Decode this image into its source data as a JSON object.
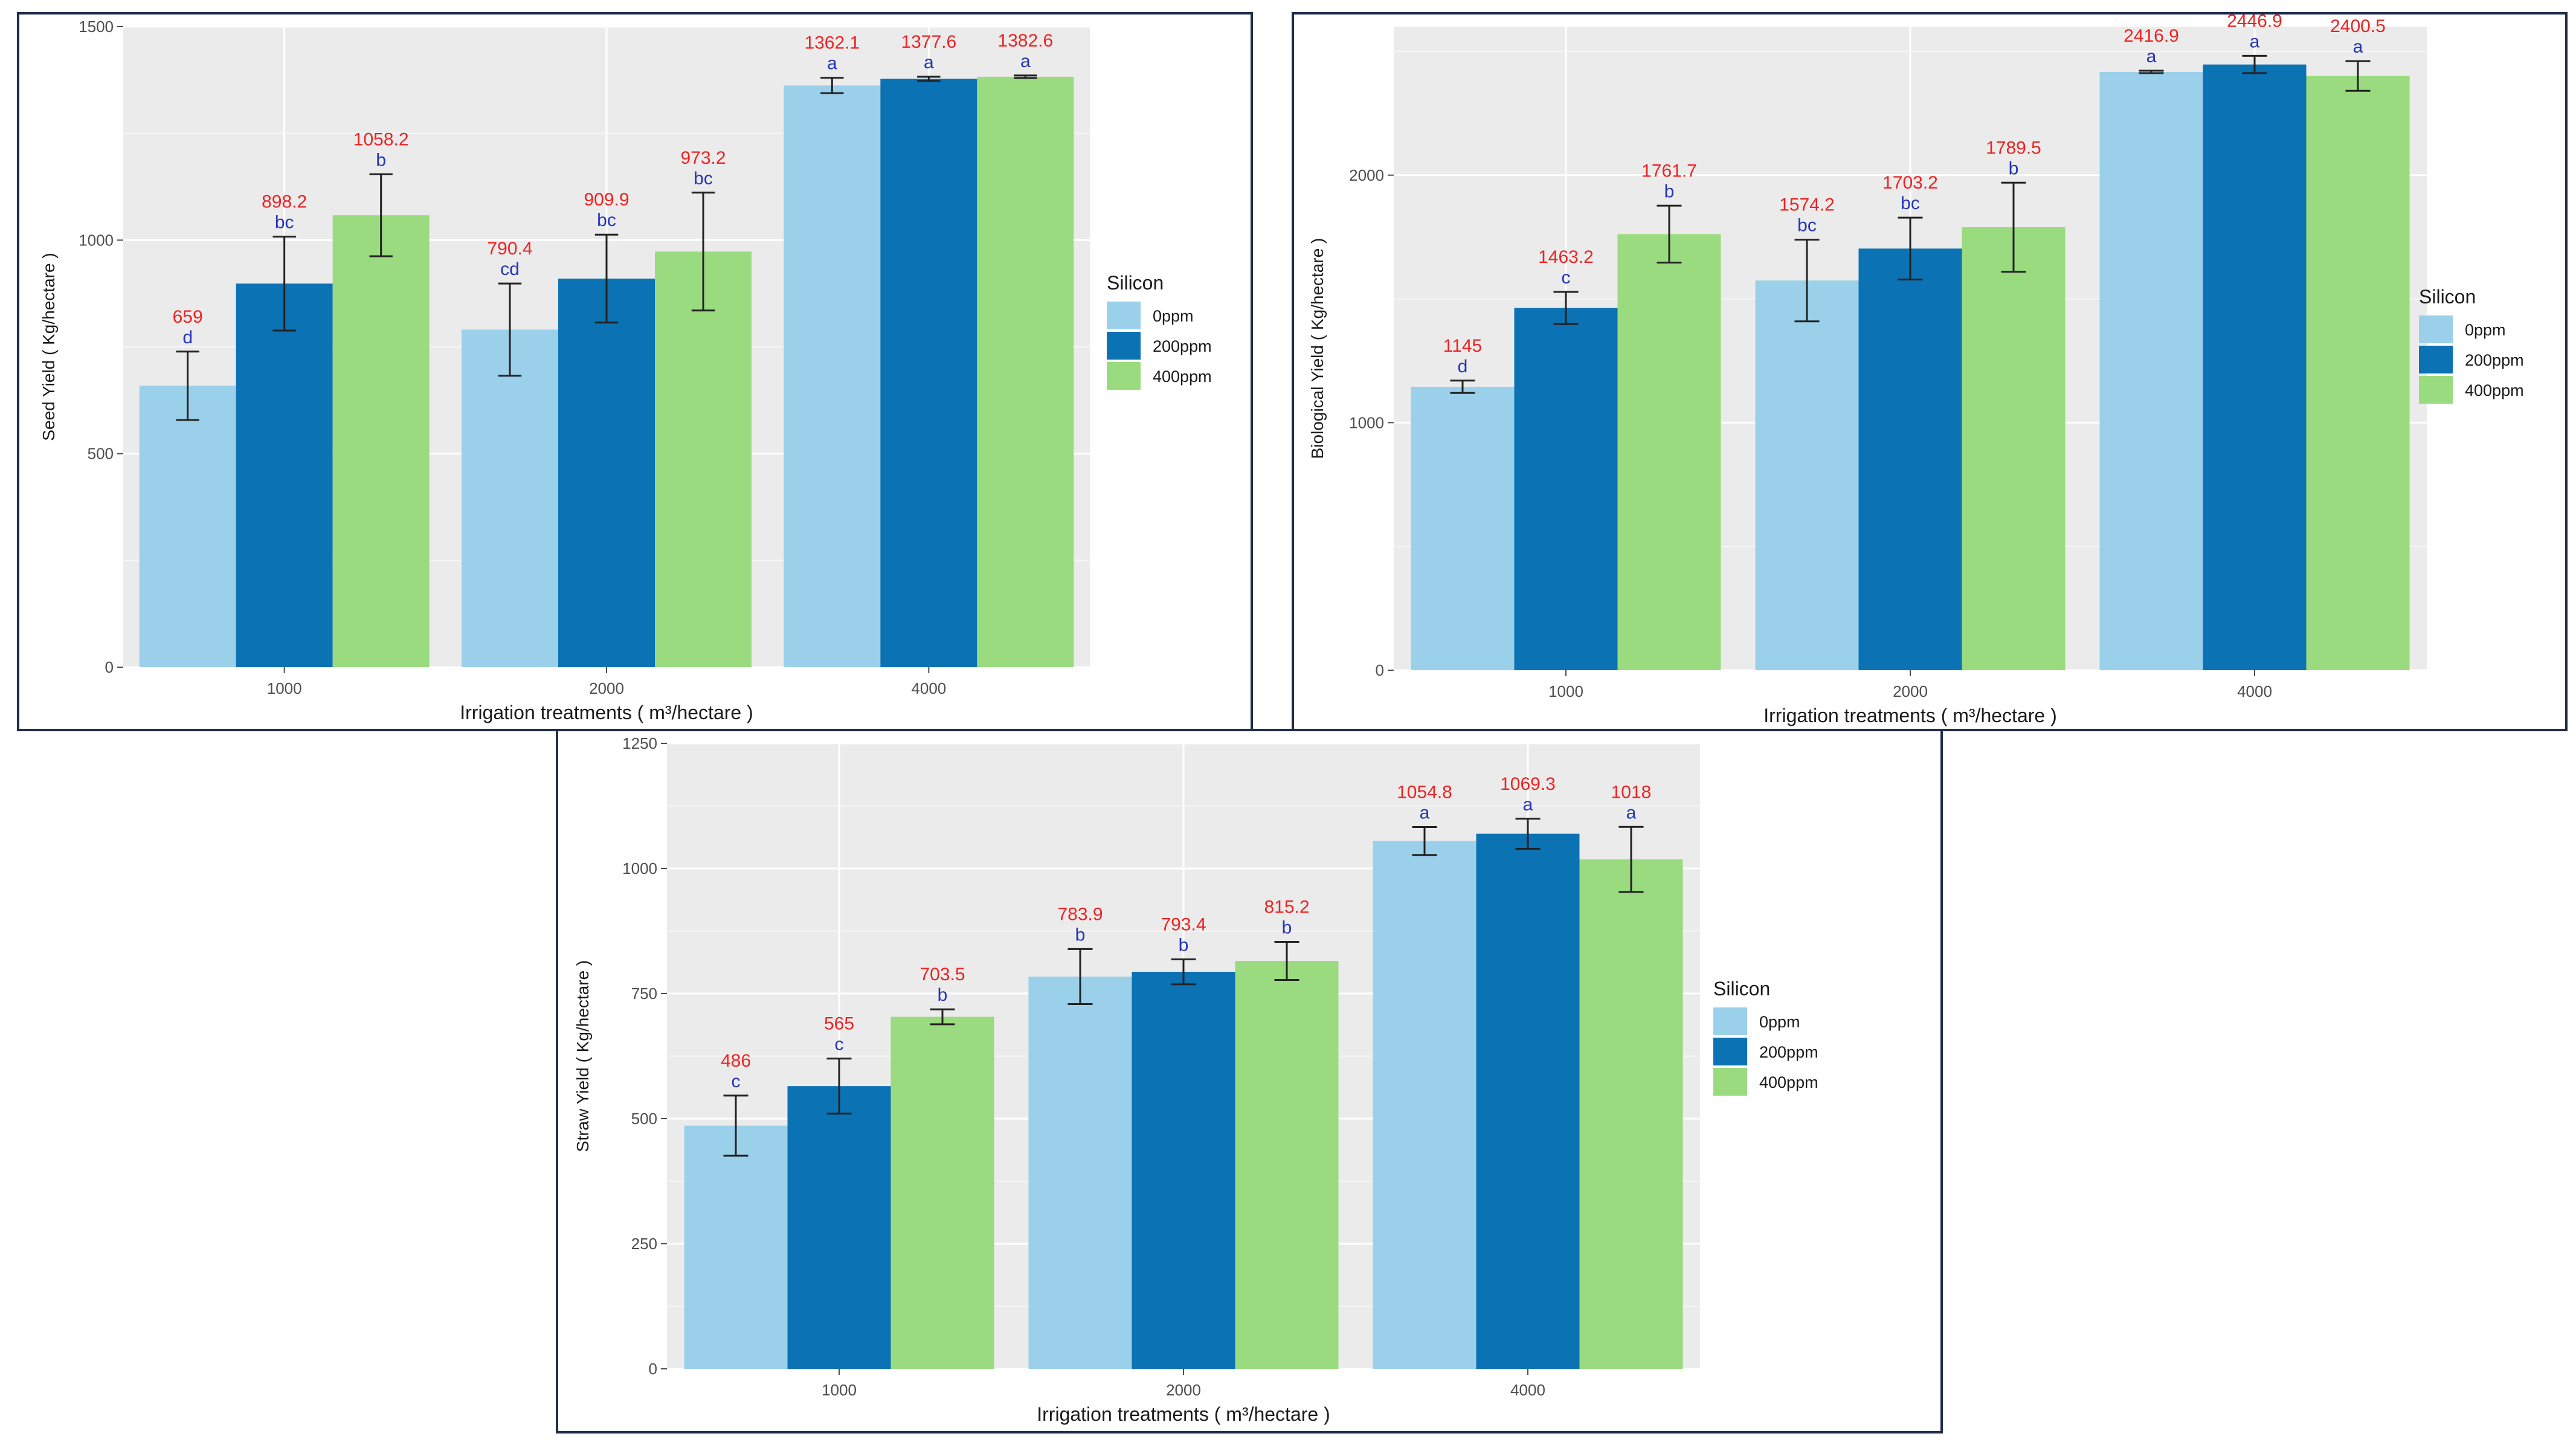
{
  "colors": {
    "0ppm": "#9bd0ea",
    "200ppm": "#0b72b3",
    "400ppm": "#99db7e"
  },
  "chart_data": [
    {
      "id": "seed",
      "type": "bar",
      "title": "",
      "xlabel": "Irrigation treatments ( m³/hectare )",
      "ylabel": "Seed Yield ( Kg/hectare )",
      "categories": [
        "1000",
        "2000",
        "4000"
      ],
      "ylim": [
        0,
        1500
      ],
      "yticks": [
        "0",
        "500",
        "1000",
        "1500"
      ],
      "grid": true,
      "legend": {
        "title": "Silicon",
        "position": "right"
      },
      "series": [
        {
          "name": "0ppm",
          "values": [
            659,
            790.4,
            1362.1
          ],
          "error": [
            80,
            108,
            18
          ],
          "value_labels": [
            "659",
            "790.4",
            "1362.1"
          ],
          "group_labels": [
            "d",
            "cd",
            "a"
          ]
        },
        {
          "name": "200ppm",
          "values": [
            898.2,
            909.9,
            1377.6
          ],
          "error": [
            110,
            103,
            5
          ],
          "value_labels": [
            "898.2",
            "909.9",
            "1377.6"
          ],
          "group_labels": [
            "bc",
            "bc",
            "a"
          ]
        },
        {
          "name": "400ppm",
          "values": [
            1058.2,
            973.2,
            1382.6
          ],
          "error": [
            96,
            138,
            3
          ],
          "value_labels": [
            "1058.2",
            "973.2",
            "1382.6"
          ],
          "group_labels": [
            "b",
            "bc",
            "a"
          ]
        }
      ]
    },
    {
      "id": "bio",
      "type": "bar",
      "title": "",
      "xlabel": "Irrigation treatments ( m³/hectare )",
      "ylabel": "Biological Yield ( Kg/hectare )",
      "categories": [
        "1000",
        "2000",
        "4000"
      ],
      "ylim": [
        0,
        2600
      ],
      "yticks": [
        "0",
        "1000",
        "2000"
      ],
      "grid": true,
      "legend": {
        "title": "Silicon",
        "position": "right"
      },
      "series": [
        {
          "name": "0ppm",
          "values": [
            1145,
            1574.2,
            2416.9
          ],
          "error": [
            25,
            165,
            5
          ],
          "value_labels": [
            "1145",
            "1574.2",
            "2416.9"
          ],
          "group_labels": [
            "d",
            "bc",
            "a"
          ]
        },
        {
          "name": "200ppm",
          "values": [
            1463.2,
            1703.2,
            2446.9
          ],
          "error": [
            65,
            125,
            35
          ],
          "value_labels": [
            "1463.2",
            "1703.2",
            "2446.9"
          ],
          "group_labels": [
            "c",
            "bc",
            "a"
          ]
        },
        {
          "name": "400ppm",
          "values": [
            1761.7,
            1789.5,
            2400.5
          ],
          "error": [
            115,
            180,
            60
          ],
          "value_labels": [
            "1761.7",
            "1789.5",
            "2400.5"
          ],
          "group_labels": [
            "b",
            "b",
            "a"
          ]
        }
      ]
    },
    {
      "id": "straw",
      "type": "bar",
      "title": "",
      "xlabel": "Irrigation treatments ( m³/hectare )",
      "ylabel": "Straw Yield ( Kg/hectare )",
      "categories": [
        "1000",
        "2000",
        "4000"
      ],
      "ylim": [
        0,
        1250
      ],
      "yticks": [
        "0",
        "250",
        "500",
        "750",
        "1000",
        "1250"
      ],
      "grid": true,
      "legend": {
        "title": "Silicon",
        "position": "right"
      },
      "series": [
        {
          "name": "0ppm",
          "values": [
            486,
            783.9,
            1054.8
          ],
          "error": [
            60,
            55,
            28
          ],
          "value_labels": [
            "486",
            "783.9",
            "1054.8"
          ],
          "group_labels": [
            "c",
            "b",
            "a"
          ]
        },
        {
          "name": "200ppm",
          "values": [
            565,
            793.4,
            1069.3
          ],
          "error": [
            55,
            25,
            30
          ],
          "value_labels": [
            "565",
            "793.4",
            "1069.3"
          ],
          "group_labels": [
            "c",
            "b",
            "a"
          ]
        },
        {
          "name": "400ppm",
          "values": [
            703.5,
            815.2,
            1018
          ],
          "error": [
            15,
            38,
            65
          ],
          "value_labels": [
            "703.5",
            "815.2",
            "1018"
          ],
          "group_labels": [
            "b",
            "b",
            "a"
          ]
        }
      ]
    }
  ]
}
